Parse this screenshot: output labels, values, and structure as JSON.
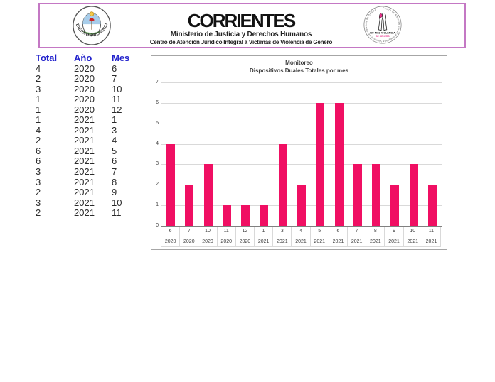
{
  "header": {
    "title": "CORRIENTES",
    "subtitle": "Ministerio de Justicia y Derechos Humanos",
    "line3": "Centro de Atención Jurídico Integral a Víctimas de Violencia de Género",
    "border_color": "#c478c4",
    "left_logo": {
      "ring_text": "GOBIERNO PROVINCIAL"
    },
    "right_logo": {
      "ring_text": "Centro de Atención Jurídica Integral a Víctimas de Violencia de Género",
      "center_line1": "NO MAS VIOLENCIA",
      "center_line2": "DE GENERO"
    }
  },
  "table": {
    "headers": [
      "Total",
      "Año",
      "Mes"
    ],
    "header_color": "#2222cc",
    "rows": [
      [
        4,
        2020,
        6
      ],
      [
        2,
        2020,
        7
      ],
      [
        3,
        2020,
        10
      ],
      [
        1,
        2020,
        11
      ],
      [
        1,
        2020,
        12
      ],
      [
        1,
        2021,
        1
      ],
      [
        4,
        2021,
        3
      ],
      [
        2,
        2021,
        4
      ],
      [
        6,
        2021,
        5
      ],
      [
        6,
        2021,
        6
      ],
      [
        3,
        2021,
        7
      ],
      [
        3,
        2021,
        8
      ],
      [
        2,
        2021,
        9
      ],
      [
        3,
        2021,
        10
      ],
      [
        2,
        2021,
        11
      ]
    ]
  },
  "chart_data": {
    "type": "bar",
    "title": "Monitoreo",
    "subtitle": "Dispositivos Duales Totales por mes",
    "categories_month": [
      "6",
      "7",
      "10",
      "11",
      "12",
      "1",
      "3",
      "4",
      "5",
      "6",
      "7",
      "8",
      "9",
      "10",
      "11"
    ],
    "categories_year": [
      "2020",
      "2020",
      "2020",
      "2020",
      "2020",
      "2021",
      "2021",
      "2021",
      "2021",
      "2021",
      "2021",
      "2021",
      "2021",
      "2021",
      "2021"
    ],
    "values": [
      4,
      2,
      3,
      1,
      1,
      1,
      4,
      2,
      6,
      6,
      3,
      3,
      2,
      3,
      2
    ],
    "ylim": [
      0,
      7
    ],
    "yticks": [
      0,
      1,
      2,
      3,
      4,
      5,
      6,
      7
    ],
    "grid": true,
    "legend": "none",
    "bar_color": "#f00f63",
    "grid_color": "#d9d9d9",
    "axis_text_color": "#404040"
  }
}
